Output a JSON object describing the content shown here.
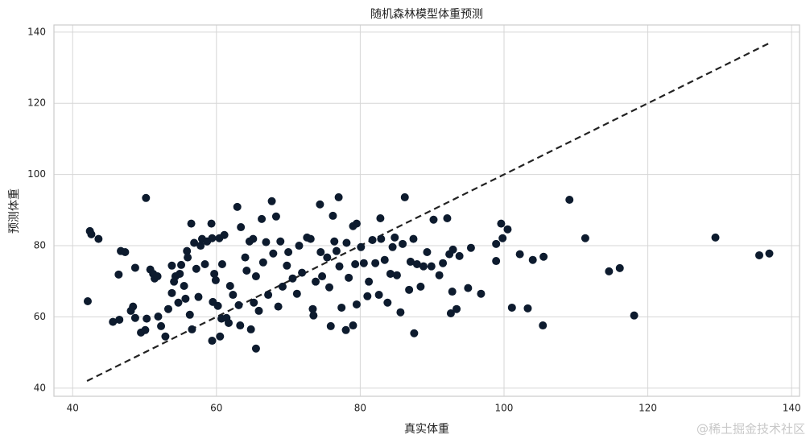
{
  "chart_data": {
    "type": "scatter",
    "title": "随机森林模型体重预测",
    "x_label": "真实体重",
    "y_label": "预测体重",
    "watermark": "@稀土掘金技术社区",
    "color": "#0d1b2e",
    "xlim": [
      37.4,
      141.1
    ],
    "ylim": [
      37.7,
      142
    ],
    "xticks": [
      40,
      60,
      80,
      100,
      120,
      140
    ],
    "yticks": [
      40,
      60,
      80,
      100,
      120,
      140
    ],
    "grid": true,
    "reference_line": {
      "x": [
        42,
        137
      ],
      "y": [
        42,
        137
      ],
      "color": "#222222",
      "style": "dashed"
    },
    "x": [
      42.1,
      42.4,
      42.6,
      43.6,
      45.6,
      46.5,
      46.4,
      46.7,
      47.3,
      48.1,
      48.4,
      48.7,
      48.7,
      49.5,
      50.1,
      50.2,
      50.3,
      50.8,
      51.2,
      51.4,
      51.8,
      51.9,
      52.3,
      52.9,
      53.3,
      53.8,
      53.8,
      54.1,
      54.3,
      54.7,
      55.1,
      54.9,
      55.5,
      55.7,
      55.9,
      56.0,
      56.5,
      56.3,
      56.6,
      56.9,
      57.2,
      57.5,
      57.8,
      58.0,
      58.4,
      58.7,
      59.3,
      59.4,
      59.4,
      59.5,
      59.7,
      59.9,
      60.2,
      60.4,
      60.5,
      60.7,
      60.8,
      61.1,
      61.4,
      61.7,
      61.9,
      62.3,
      62.9,
      63.1,
      63.3,
      63.4,
      64.0,
      64.2,
      64.6,
      64.8,
      65.1,
      65.5,
      65.2,
      65.5,
      65.9,
      66.3,
      66.5,
      66.9,
      67.2,
      67.7,
      67.9,
      68.3,
      68.6,
      68.9,
      69.2,
      69.8,
      70.0,
      70.6,
      71.2,
      71.5,
      71.9,
      72.6,
      73.1,
      73.4,
      73.5,
      73.8,
      74.4,
      74.5,
      74.7,
      75.4,
      75.7,
      75.9,
      76.2,
      76.4,
      76.7,
      77.0,
      77.1,
      77.4,
      78.0,
      78.1,
      78.4,
      79.0,
      79.0,
      79.3,
      79.5,
      79.5,
      80.1,
      80.5,
      81.0,
      81.2,
      81.7,
      82.1,
      82.6,
      82.8,
      82.9,
      83.4,
      83.8,
      84.2,
      84.5,
      84.8,
      85.1,
      85.6,
      85.9,
      86.2,
      86.8,
      87.0,
      87.4,
      87.5,
      87.9,
      88.4,
      88.8,
      89.3,
      89.9,
      90.2,
      91.0,
      91.5,
      92.1,
      92.4,
      92.8,
      92.9,
      92.6,
      93.4,
      93.8,
      95.0,
      95.4,
      96.8,
      98.9,
      98.9,
      99.6,
      99.8,
      100.5,
      101.1,
      102.2,
      103.3,
      104.0,
      105.4,
      105.5,
      109.1,
      111.3,
      114.6,
      116.1,
      118.1,
      129.4,
      135.5,
      136.9
    ],
    "values": [
      64.4,
      84.1,
      83.2,
      81.9,
      58.6,
      59.2,
      71.9,
      78.5,
      78.2,
      61.7,
      62.9,
      73.8,
      59.7,
      55.6,
      56.3,
      93.4,
      59.5,
      73.3,
      72.1,
      70.8,
      71.4,
      60.1,
      57.4,
      54.5,
      62.2,
      74.4,
      66.7,
      69.9,
      71.4,
      64.0,
      74.6,
      72.1,
      68.7,
      65.1,
      78.5,
      76.7,
      86.2,
      60.6,
      56.5,
      80.8,
      73.5,
      65.6,
      80.0,
      81.9,
      74.8,
      81.2,
      86.2,
      53.3,
      82.1,
      64.2,
      72.1,
      70.3,
      63.1,
      82.1,
      54.5,
      59.5,
      74.8,
      83.0,
      59.7,
      58.3,
      68.7,
      66.2,
      90.9,
      63.3,
      57.6,
      85.2,
      76.7,
      73.0,
      81.2,
      56.5,
      81.9,
      51.1,
      64.0,
      71.4,
      61.7,
      87.5,
      75.3,
      81.0,
      66.2,
      92.5,
      77.8,
      88.2,
      62.9,
      81.2,
      68.5,
      74.4,
      78.2,
      70.8,
      66.5,
      80.0,
      72.4,
      82.3,
      81.9,
      62.2,
      60.4,
      69.9,
      91.6,
      78.2,
      71.4,
      76.7,
      68.3,
      57.4,
      88.4,
      81.2,
      78.5,
      93.6,
      74.2,
      62.6,
      56.3,
      80.8,
      71.0,
      57.6,
      85.5,
      74.8,
      86.2,
      63.5,
      79.6,
      75.1,
      65.8,
      69.9,
      81.6,
      75.1,
      66.2,
      87.7,
      81.9,
      76.0,
      64.0,
      72.1,
      79.6,
      82.3,
      71.7,
      61.3,
      80.5,
      93.6,
      67.6,
      75.5,
      81.9,
      55.4,
      74.8,
      68.5,
      74.2,
      78.2,
      74.2,
      87.3,
      71.7,
      75.1,
      87.7,
      77.6,
      67.1,
      78.9,
      61.0,
      62.2,
      77.1,
      68.1,
      79.4,
      66.5,
      75.7,
      80.5,
      86.2,
      82.1,
      84.6,
      62.6,
      77.6,
      62.4,
      76.0,
      57.6,
      76.9,
      92.9,
      82.1,
      72.8,
      73.7,
      60.4,
      82.3,
      77.3,
      77.8
    ]
  }
}
